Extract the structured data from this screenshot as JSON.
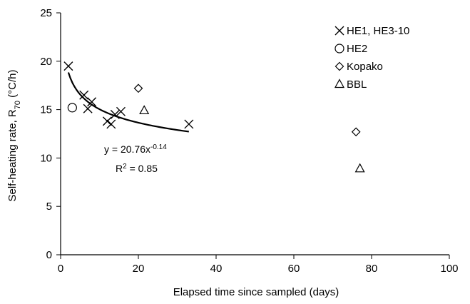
{
  "chart_data": {
    "type": "scatter",
    "xlabel": "Elapsed time since sampled (days)",
    "ylabel_main": "Self-heating rate, R",
    "ylabel_sub": "70",
    "ylabel_unit": " (°C/h)",
    "xlim": [
      0,
      100
    ],
    "ylim": [
      0,
      25
    ],
    "x_ticks": [
      0,
      20,
      40,
      60,
      80,
      100
    ],
    "y_ticks": [
      0,
      5,
      10,
      15,
      20,
      25
    ],
    "grid": false,
    "legend_position": "top-right",
    "series": [
      {
        "name": "HE1, HE3-10",
        "marker": "x",
        "points": [
          [
            2,
            19.5
          ],
          [
            6,
            16.5
          ],
          [
            7,
            15.1
          ],
          [
            8,
            15.8
          ],
          [
            12,
            13.8
          ],
          [
            13,
            13.5
          ],
          [
            14,
            14.5
          ],
          [
            15.5,
            14.8
          ],
          [
            33,
            13.5
          ]
        ]
      },
      {
        "name": "HE2",
        "marker": "circle",
        "points": [
          [
            3,
            15.2
          ]
        ]
      },
      {
        "name": "Kopako",
        "marker": "diamond",
        "points": [
          [
            20,
            17.2
          ],
          [
            76,
            12.7
          ]
        ]
      },
      {
        "name": "BBL",
        "marker": "triangle",
        "points": [
          [
            21.5,
            14.9
          ],
          [
            77,
            8.9
          ]
        ]
      }
    ],
    "fit": {
      "a": 20.76,
      "b": -0.14,
      "x_range": [
        2,
        33
      ],
      "equation_prefix": "y = 20.76x",
      "equation_exp": "-0.14",
      "r2_prefix": "R",
      "r2_exp": "2",
      "r2_suffix": " = 0.85"
    }
  }
}
